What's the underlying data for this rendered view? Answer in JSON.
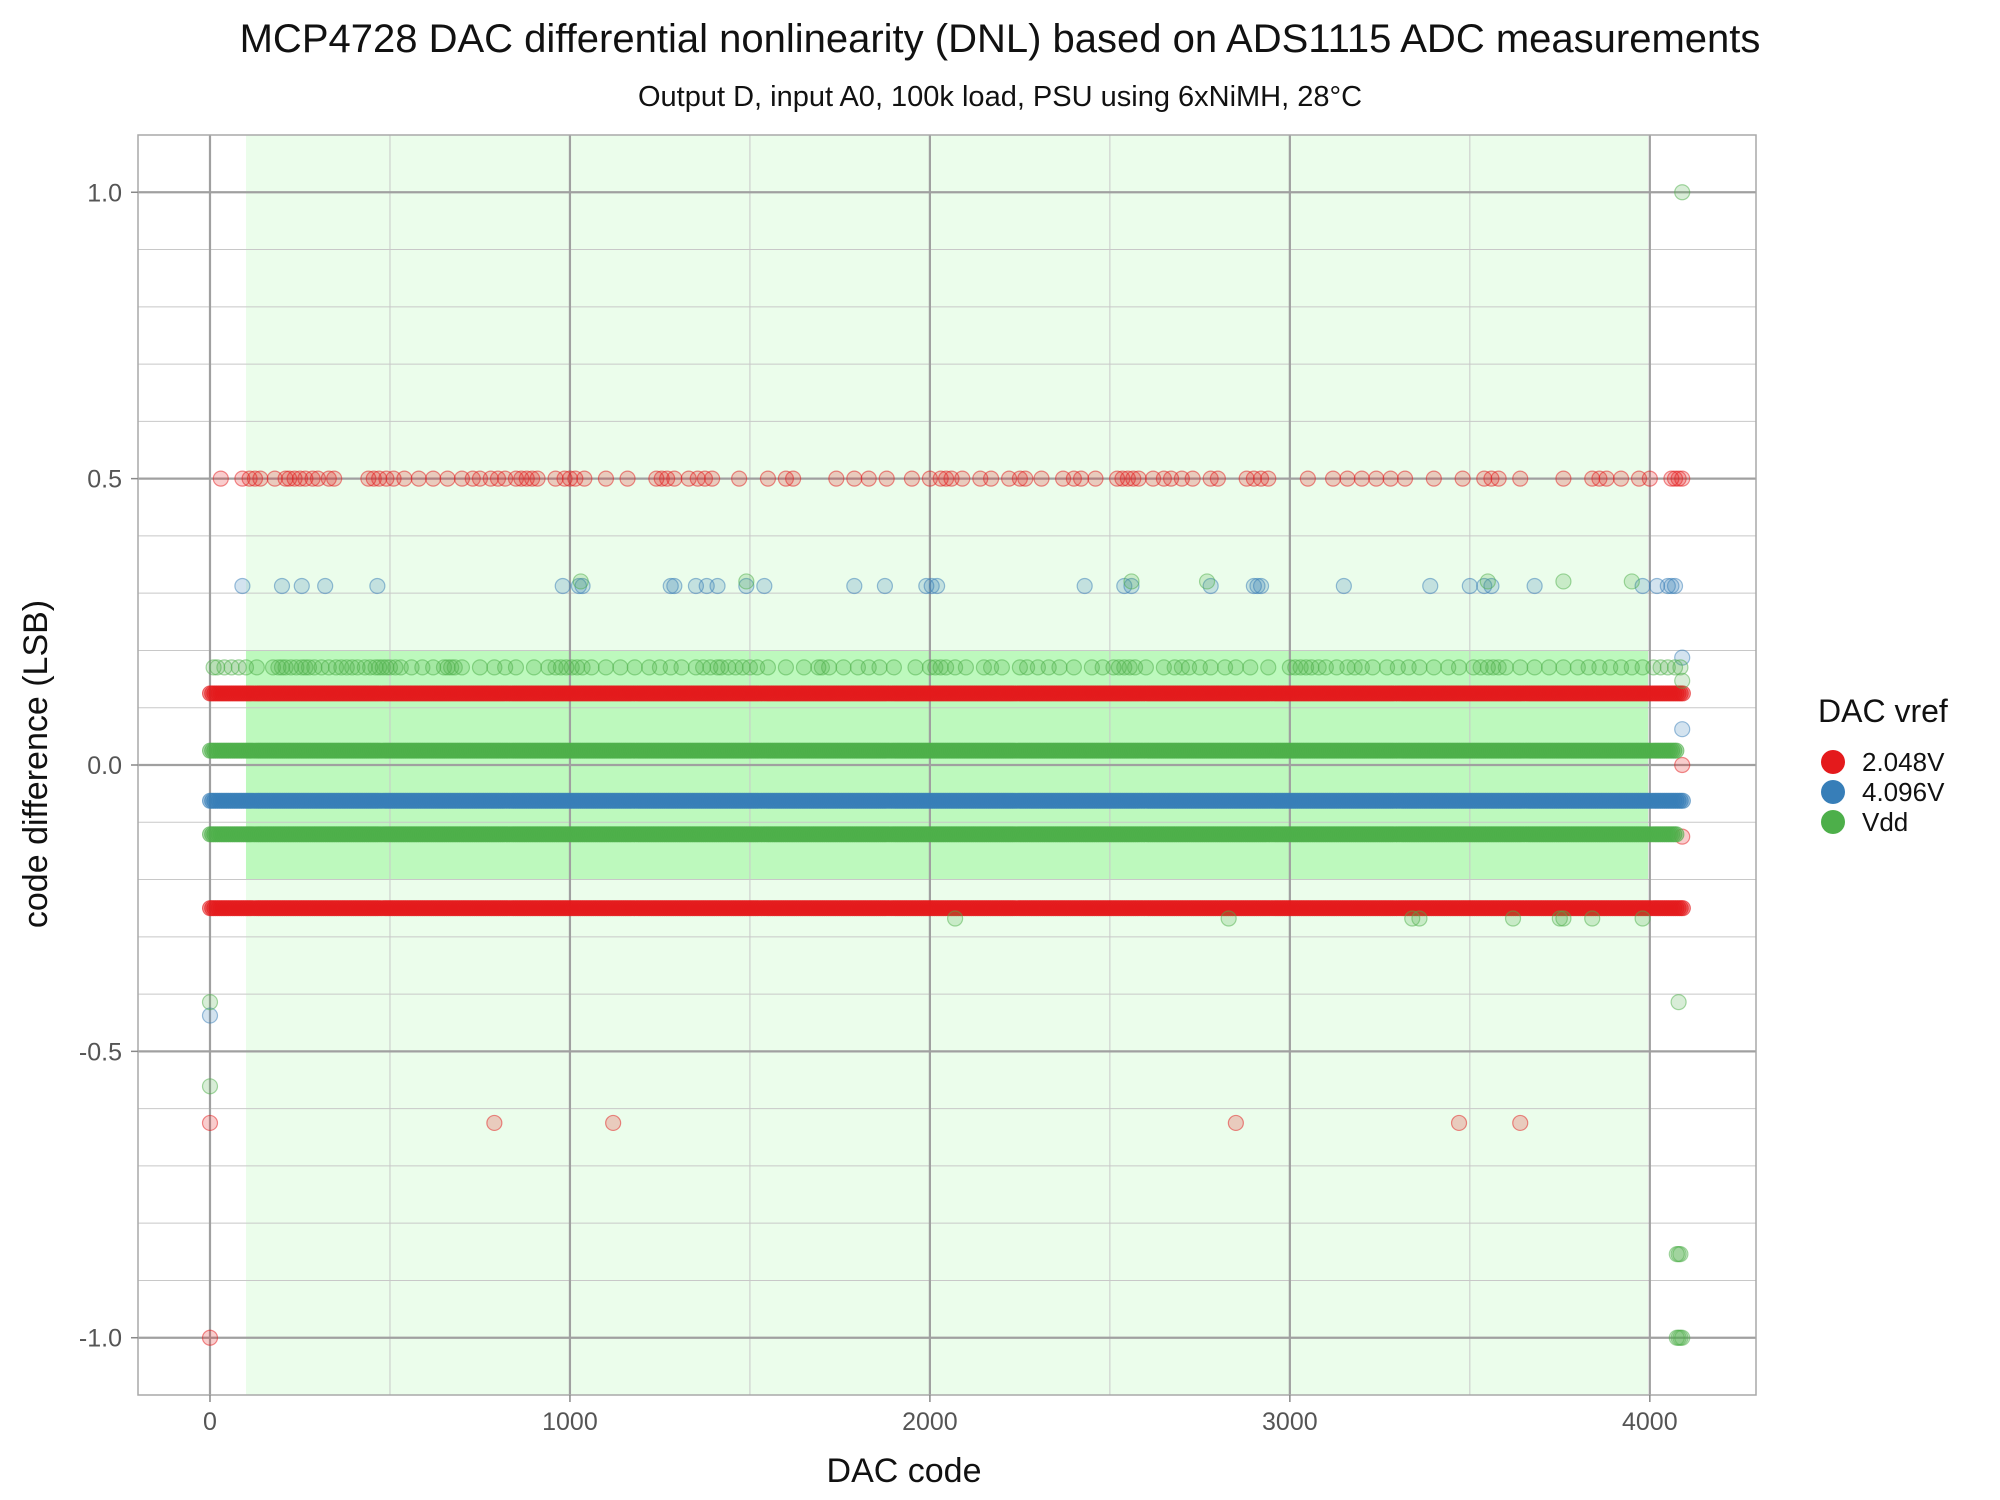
{
  "chart_data": {
    "type": "scatter",
    "title": "MCP4728 DAC differential nonlinearity (DNL) based on ADS1115 ADC measurements",
    "subtitle": "Output D, input A0, 100k load, PSU using 6xNiMH, 28°C",
    "xlabel": "DAC code",
    "ylabel": "code difference (LSB)",
    "xlim": [
      -200,
      4295
    ],
    "ylim": [
      -1.1,
      1.1
    ],
    "x_ticks": [
      0,
      1000,
      2000,
      3000,
      4000
    ],
    "x_tick_labels": [
      "0",
      "1000",
      "2000",
      "3000",
      "4000"
    ],
    "y_ticks": [
      -1.0,
      -0.5,
      0.0,
      0.5,
      1.0
    ],
    "y_tick_labels": [
      "-1.0",
      "-0.5",
      "0.0",
      "0.5",
      "1.0"
    ],
    "grid": true,
    "legend_position": "right",
    "legend_title": "DAC vref",
    "shaded_regions": [
      {
        "x": [
          100,
          3995
        ],
        "y": [
          -1.1,
          1.1
        ],
        "color": "#ebfdeb"
      },
      {
        "x": [
          100,
          3995
        ],
        "y": [
          -0.2,
          0.2
        ],
        "color": "#bdf9bd"
      }
    ],
    "series": [
      {
        "name": "2.048V",
        "color": "#e41a1c",
        "dense_bands": [
          {
            "y": -0.25,
            "x": [
              0,
              4095
            ]
          },
          {
            "y": 0.125,
            "x": [
              0,
              4095
            ]
          }
        ],
        "sparse_points": [
          {
            "y": 0.5,
            "x": [
              30,
              90,
              110,
              125,
              140,
              180,
              210,
              220,
              235,
              250,
              265,
              285,
              300,
              330,
              345,
              440,
              455,
              470,
              490,
              510,
              540,
              580,
              620,
              660,
              700,
              730,
              750,
              780,
              800,
              820,
              850,
              865,
              880,
              895,
              910,
              960,
              985,
              1000,
              1015,
              1040,
              1100,
              1160,
              1240,
              1255,
              1270,
              1290,
              1330,
              1355,
              1375,
              1395,
              1470,
              1550,
              1600,
              1620,
              1740,
              1790,
              1830,
              1880,
              1950,
              2000,
              2030,
              2045,
              2060,
              2090,
              2140,
              2170,
              2220,
              2250,
              2265,
              2310,
              2370,
              2400,
              2420,
              2460,
              2520,
              2535,
              2550,
              2565,
              2580,
              2620,
              2650,
              2670,
              2700,
              2730,
              2780,
              2800,
              2880,
              2900,
              2920,
              2940,
              3050,
              3120,
              3160,
              3200,
              3240,
              3280,
              3320,
              3400,
              3480,
              3540,
              3560,
              3580,
              3640,
              3760,
              3840,
              3860,
              3880,
              3920,
              3970,
              4000,
              4060,
              4070,
              4080,
              4090
            ]
          },
          {
            "y": -0.625,
            "x": [
              0,
              790,
              1120,
              2850,
              3470,
              3640
            ]
          },
          {
            "y": -1.0,
            "x": [
              0
            ]
          },
          {
            "y": 0.0,
            "x": [
              4090
            ]
          },
          {
            "y": -0.125,
            "x": [
              4090
            ]
          }
        ]
      },
      {
        "name": "4.096V",
        "color": "#377eb8",
        "dense_bands": [
          {
            "y": -0.0625,
            "x": [
              0,
              4095
            ]
          }
        ],
        "sparse_points": [
          {
            "y": 0.3125,
            "x": [
              90,
              200,
              255,
              320,
              465,
              980,
              1025,
              1035,
              1280,
              1290,
              1350,
              1380,
              1410,
              1490,
              1540,
              1790,
              1875,
              1990,
              2005,
              2020,
              2430,
              2540,
              2560,
              2780,
              2900,
              2910,
              2920,
              3150,
              3390,
              3500,
              3540,
              3560,
              3680,
              3980,
              4020,
              4050,
              4060,
              4070
            ]
          },
          {
            "y": 0.1875,
            "x": [
              4090
            ]
          },
          {
            "y": 0.0625,
            "x": [
              4090
            ]
          },
          {
            "y": -0.4375,
            "x": [
              0
            ]
          }
        ]
      },
      {
        "name": "Vdd",
        "color": "#4daf4a",
        "dense_bands": [
          {
            "y": 0.025,
            "x": [
              0,
              4075
            ]
          },
          {
            "y": -0.121,
            "x": [
              0,
              4075
            ]
          }
        ],
        "sparse_points": [
          {
            "y": 0.1705,
            "x": [
              10,
              20,
              40,
              60,
              80,
              100,
              130,
              175,
              190,
              200,
              210,
              225,
              240,
              255,
              265,
              275,
              290,
              310,
              330,
              350,
              365,
              380,
              395,
              410,
              430,
              445,
              460,
              470,
              480,
              490,
              500,
              515,
              530,
              560,
              590,
              620,
              650,
              660,
              670,
              680,
              700,
              750,
              790,
              820,
              850,
              900,
              940,
              960,
              975,
              990,
              1005,
              1020,
              1035,
              1060,
              1100,
              1140,
              1180,
              1220,
              1250,
              1280,
              1310,
              1350,
              1370,
              1390,
              1410,
              1420,
              1440,
              1460,
              1480,
              1500,
              1520,
              1550,
              1600,
              1650,
              1690,
              1700,
              1720,
              1760,
              1800,
              1830,
              1860,
              1900,
              1960,
              2000,
              2015,
              2030,
              2045,
              2070,
              2100,
              2150,
              2170,
              2200,
              2250,
              2270,
              2300,
              2330,
              2360,
              2400,
              2450,
              2480,
              2510,
              2525,
              2540,
              2555,
              2570,
              2600,
              2650,
              2680,
              2700,
              2720,
              2750,
              2780,
              2820,
              2850,
              2890,
              2940,
              3000,
              3015,
              3030,
              3045,
              3060,
              3080,
              3100,
              3130,
              3160,
              3180,
              3200,
              3230,
              3270,
              3300,
              3330,
              3360,
              3400,
              3440,
              3470,
              3510,
              3530,
              3550,
              3565,
              3580,
              3600,
              3640,
              3680,
              3720,
              3760,
              3800,
              3830,
              3860,
              3890,
              3920,
              3950,
              3980,
              4010,
              4030,
              4050,
              4070,
              4085
            ]
          },
          {
            "y": 0.3205,
            "x": [
              1030,
              1490,
              2560,
              2770,
              3550,
              3760,
              3950
            ]
          },
          {
            "y": -0.268,
            "x": [
              2070,
              2830,
              3340,
              3360,
              3620,
              3750,
              3760,
              3840,
              3980
            ]
          },
          {
            "y": -0.414,
            "x": [
              0,
              4080
            ]
          },
          {
            "y": -0.561,
            "x": [
              0
            ]
          },
          {
            "y": 1.0,
            "x": [
              4090
            ]
          },
          {
            "y": 0.147,
            "x": [
              4090
            ]
          },
          {
            "y": -0.854,
            "x": [
              4075,
              4080,
              4085
            ]
          },
          {
            "y": -1.0,
            "x": [
              4075,
              4080,
              4085,
              4090
            ]
          }
        ]
      }
    ]
  }
}
